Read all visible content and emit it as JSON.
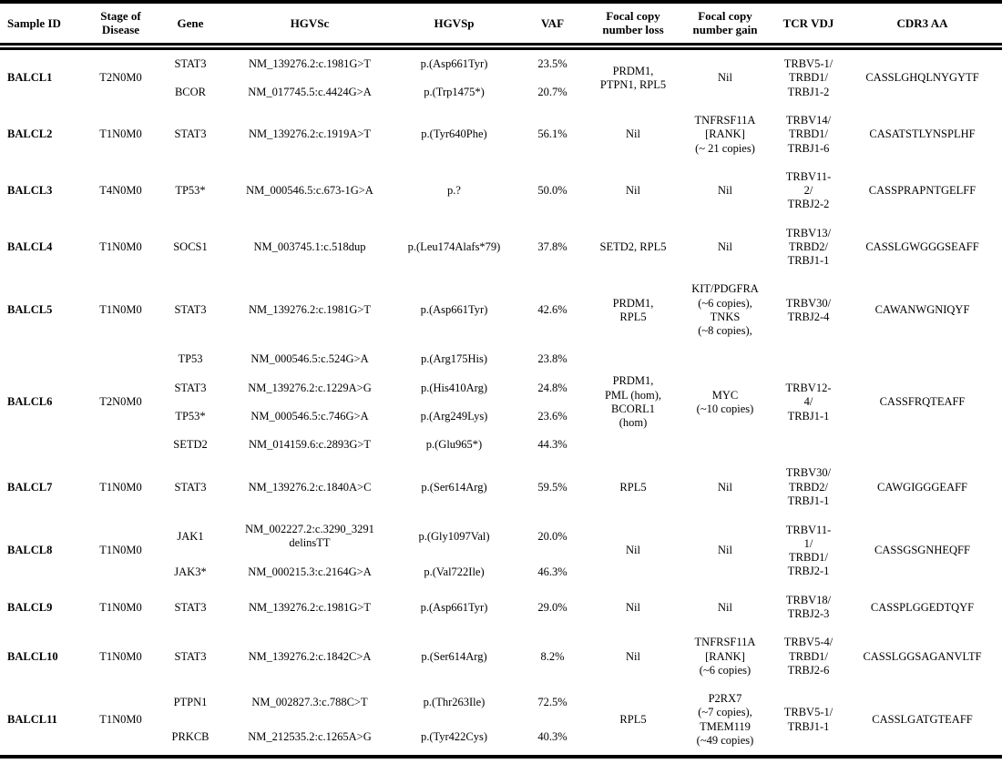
{
  "table": {
    "columns": [
      {
        "key": "sample-id",
        "label": "Sample ID"
      },
      {
        "key": "stage-of-disease",
        "label": "Stage of Disease"
      },
      {
        "key": "gene",
        "label": "Gene"
      },
      {
        "key": "hgvsc",
        "label": "HGVSc"
      },
      {
        "key": "hgvsp",
        "label": "HGVSp"
      },
      {
        "key": "vaf",
        "label": "VAF"
      },
      {
        "key": "focal-copy-number-loss",
        "label": "Focal copy number loss"
      },
      {
        "key": "focal-copy-number-gain",
        "label": "Focal copy number gain"
      },
      {
        "key": "tcr-vdj",
        "label": "TCR VDJ"
      },
      {
        "key": "cdr3-aa",
        "label": "CDR3 AA"
      }
    ],
    "groups": [
      {
        "sample_id": "BALCL1",
        "stage": "T2N0M0",
        "mutations": [
          {
            "gene": "STAT3",
            "hgvsc": "NM_139276.2:c.1981G>T",
            "hgvsp": "p.(Asp661Tyr)",
            "vaf": "23.5%"
          },
          {
            "gene": "BCOR",
            "hgvsc": "NM_017745.5:c.4424G>A",
            "hgvsp": "p.(Trp1475*)",
            "vaf": "20.7%"
          }
        ],
        "loss": "PRDM1,\nPTPN1, RPL5",
        "gain": "Nil",
        "tcr": "TRBV5-1/\nTRBD1/\nTRBJ1-2",
        "cdr3": "CASSLGHQLNYGYTF"
      },
      {
        "sample_id": "BALCL2",
        "stage": "T1N0M0",
        "mutations": [
          {
            "gene": "STAT3",
            "hgvsc": "NM_139276.2:c.1919A>T",
            "hgvsp": "p.(Tyr640Phe)",
            "vaf": "56.1%"
          }
        ],
        "loss": "Nil",
        "gain": "TNFRSF11A\n[RANK]\n(~ 21 copies)",
        "tcr": "TRBV14/\nTRBD1/\nTRBJ1-6",
        "cdr3": "CASATSTLYNSPLHF"
      },
      {
        "sample_id": "BALCL3",
        "stage": "T4N0M0",
        "mutations": [
          {
            "gene": "TP53*",
            "hgvsc": "NM_000546.5:c.673-1G>A",
            "hgvsp": "p.?",
            "vaf": "50.0%"
          }
        ],
        "loss": "Nil",
        "gain": "Nil",
        "tcr": "TRBV11-\n2/\nTRBJ2-2",
        "cdr3": "CASSPRAPNTGELFF"
      },
      {
        "sample_id": "BALCL4",
        "stage": "T1N0M0",
        "mutations": [
          {
            "gene": "SOCS1",
            "hgvsc": "NM_003745.1:c.518dup",
            "hgvsp": "p.(Leu174Alafs*79)",
            "vaf": "37.8%"
          }
        ],
        "loss": "SETD2, RPL5",
        "gain": "Nil",
        "tcr": "TRBV13/\nTRBD2/\nTRBJ1-1",
        "cdr3": "CASSLGWGGGSEAFF"
      },
      {
        "sample_id": "BALCL5",
        "stage": "T1N0M0",
        "mutations": [
          {
            "gene": "STAT3",
            "hgvsc": "NM_139276.2:c.1981G>T",
            "hgvsp": "p.(Asp661Tyr)",
            "vaf": "42.6%"
          }
        ],
        "loss": "PRDM1,\nRPL5",
        "gain": "KIT/PDGFRA\n(~6 copies),\nTNKS\n(~8 copies),",
        "tcr": "TRBV30/\nTRBJ2-4",
        "cdr3": "CAWANWGNIQYF"
      },
      {
        "sample_id": "BALCL6",
        "stage": "T2N0M0",
        "mutations": [
          {
            "gene": "TP53",
            "hgvsc": "NM_000546.5:c.524G>A",
            "hgvsp": "p.(Arg175His)",
            "vaf": "23.8%"
          },
          {
            "gene": "STAT3",
            "hgvsc": "NM_139276.2:c.1229A>G",
            "hgvsp": "p.(His410Arg)",
            "vaf": "24.8%"
          },
          {
            "gene": "TP53*",
            "hgvsc": "NM_000546.5:c.746G>A",
            "hgvsp": "p.(Arg249Lys)",
            "vaf": "23.6%"
          },
          {
            "gene": "SETD2",
            "hgvsc": "NM_014159.6:c.2893G>T",
            "hgvsp": "p.(Glu965*)",
            "vaf": "44.3%"
          }
        ],
        "loss": "PRDM1,\nPML (hom),\nBCORL1\n(hom)",
        "gain": "MYC\n(~10 copies)",
        "tcr": "TRBV12-\n4/\nTRBJ1-1",
        "cdr3": "CASSFRQTEAFF"
      },
      {
        "sample_id": "BALCL7",
        "stage": "T1N0M0",
        "mutations": [
          {
            "gene": "STAT3",
            "hgvsc": "NM_139276.2:c.1840A>C",
            "hgvsp": "p.(Ser614Arg)",
            "vaf": "59.5%"
          }
        ],
        "loss": "RPL5",
        "gain": "Nil",
        "tcr": "TRBV30/\nTRBD2/\nTRBJ1-1",
        "cdr3": "CAWGIGGGEAFF"
      },
      {
        "sample_id": "BALCL8",
        "stage": "T1N0M0",
        "mutations": [
          {
            "gene": "JAK1",
            "hgvsc": "NM_002227.2:c.3290_3291\ndelinsTT",
            "hgvsp": "p.(Gly1097Val)",
            "vaf": "20.0%"
          },
          {
            "gene": "JAK3*",
            "hgvsc": "NM_000215.3:c.2164G>A",
            "hgvsp": "p.(Val722Ile)",
            "vaf": "46.3%"
          }
        ],
        "loss": "Nil",
        "gain": "Nil",
        "tcr": "TRBV11-\n1/\nTRBD1/\nTRBJ2-1",
        "cdr3": "CASSGSGNHEQFF"
      },
      {
        "sample_id": "BALCL9",
        "stage": "T1N0M0",
        "mutations": [
          {
            "gene": "STAT3",
            "hgvsc": "NM_139276.2:c.1981G>T",
            "hgvsp": "p.(Asp661Tyr)",
            "vaf": "29.0%"
          }
        ],
        "loss": "Nil",
        "gain": "Nil",
        "tcr": "TRBV18/\nTRBJ2-3",
        "cdr3": "CASSPLGGEDTQYF"
      },
      {
        "sample_id": "BALCL10",
        "stage": "T1N0M0",
        "mutations": [
          {
            "gene": "STAT3",
            "hgvsc": "NM_139276.2:c.1842C>A",
            "hgvsp": "p.(Ser614Arg)",
            "vaf": "8.2%"
          }
        ],
        "loss": "Nil",
        "gain": "TNFRSF11A\n[RANK]\n(~6 copies)",
        "tcr": "TRBV5-4/\nTRBD1/\nTRBJ2-6",
        "cdr3": "CASSLGGSAGANVLTF"
      },
      {
        "sample_id": "BALCL11",
        "stage": "T1N0M0",
        "mutations": [
          {
            "gene": "PTPN1",
            "hgvsc": "NM_002827.3:c.788C>T",
            "hgvsp": "p.(Thr263Ile)",
            "vaf": "72.5%"
          },
          {
            "gene": "PRKCB",
            "hgvsc": "NM_212535.2:c.1265A>G",
            "hgvsp": "p.(Tyr422Cys)",
            "vaf": "40.3%"
          }
        ],
        "loss": "RPL5",
        "gain": "P2RX7\n(~7 copies),\nTMEM119\n(~49 copies)",
        "tcr": "TRBV5-1/\nTRBJ1-1",
        "cdr3": "CASSLGATGTEAFF"
      }
    ]
  }
}
